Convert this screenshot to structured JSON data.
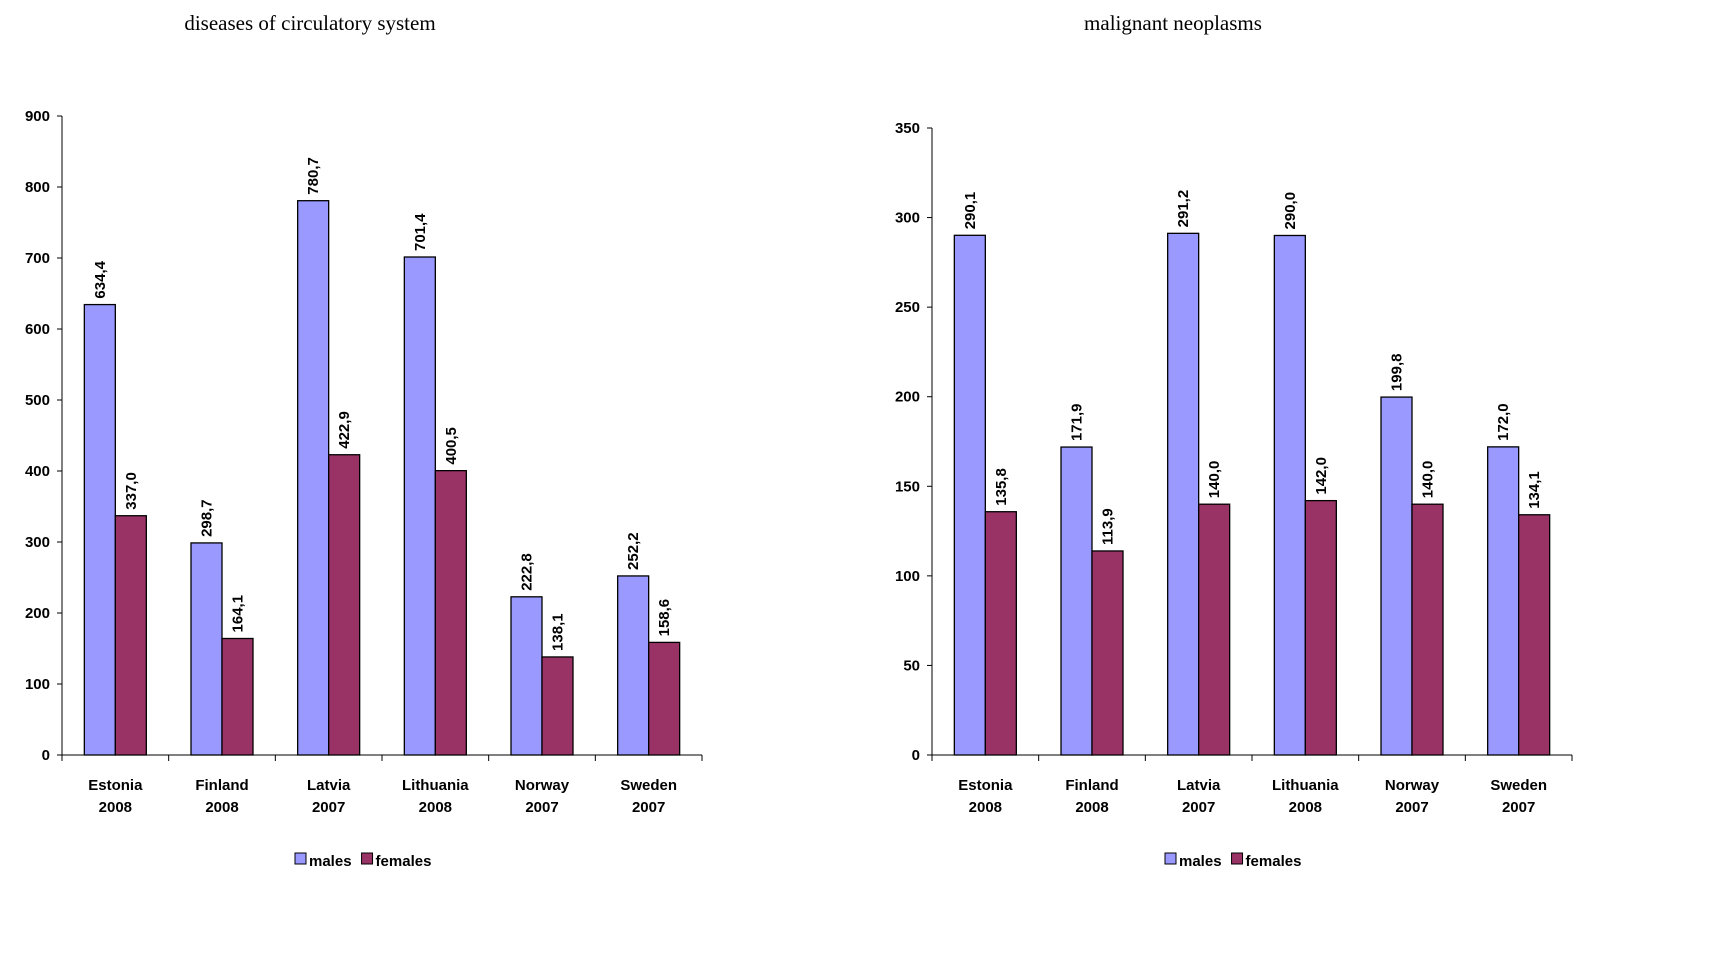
{
  "chart_data": [
    {
      "type": "bar",
      "title": "diseases of circulatory system",
      "categories": [
        "Estonia\n2008",
        "Finland\n2008",
        "Latvia\n2007",
        "Lithuania\n2008",
        "Norway\n2007",
        "Sweden\n2007"
      ],
      "series": [
        {
          "name": "males",
          "color": "#9999ff",
          "values": [
            634.4,
            298.7,
            780.7,
            701.4,
            222.8,
            252.2
          ],
          "value_labels": [
            "634,4",
            "298,7",
            "780,7",
            "701,4",
            "222,8",
            "252,2"
          ]
        },
        {
          "name": "females",
          "color": "#993366",
          "values": [
            337.0,
            164.1,
            422.9,
            400.5,
            138.1,
            158.6
          ],
          "value_labels": [
            "337,0",
            "164,1",
            "422,9",
            "400,5",
            "138,1",
            "158,6"
          ]
        }
      ],
      "ylim": [
        0,
        900
      ],
      "yticks": [
        0,
        100,
        200,
        300,
        400,
        500,
        600,
        700,
        800,
        900
      ],
      "legend": "bottom"
    },
    {
      "type": "bar",
      "title": "malignant neoplasms",
      "categories": [
        "Estonia\n2008",
        "Finland\n2008",
        "Latvia\n2007",
        "Lithuania\n2008",
        "Norway\n2007",
        "Sweden\n2007"
      ],
      "series": [
        {
          "name": "males",
          "color": "#9999ff",
          "values": [
            290.1,
            171.9,
            291.2,
            290.0,
            199.8,
            172.0
          ],
          "value_labels": [
            "290,1",
            "171,9",
            "291,2",
            "290,0",
            "199,8",
            "172,0"
          ]
        },
        {
          "name": "females",
          "color": "#993366",
          "values": [
            135.8,
            113.9,
            140.0,
            142.0,
            140.0,
            134.1
          ],
          "value_labels": [
            "135,8",
            "113,9",
            "140,0",
            "142,0",
            "140,0",
            "134,1"
          ]
        }
      ],
      "ylim": [
        0,
        350
      ],
      "yticks": [
        0,
        50,
        100,
        150,
        200,
        250,
        300,
        350
      ],
      "legend": "bottom"
    }
  ]
}
